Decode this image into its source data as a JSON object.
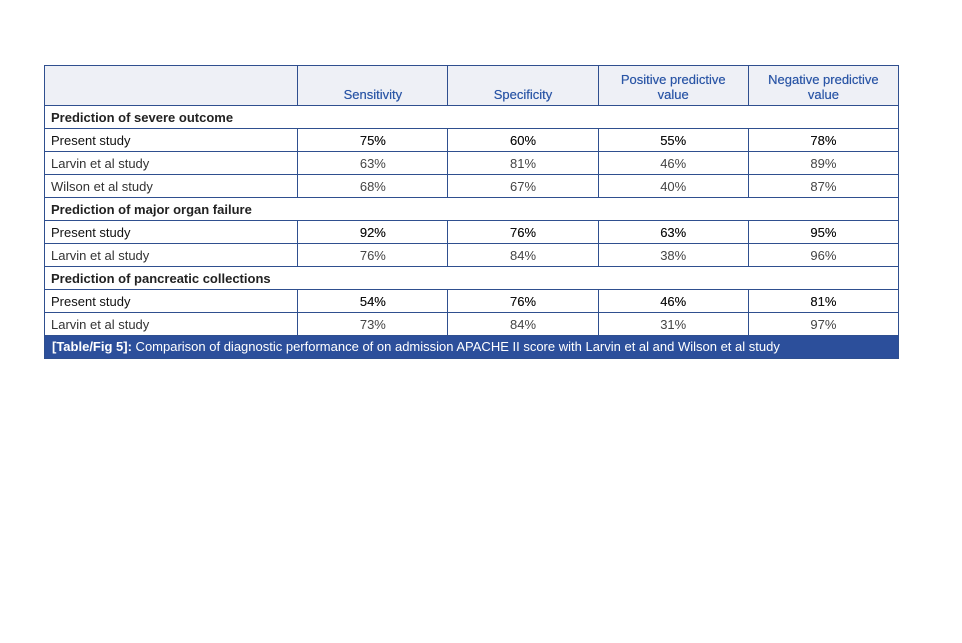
{
  "table": {
    "columns": [
      "",
      "Sensitivity",
      "Specificity",
      "Positive predictive value",
      "Negative predictive value"
    ],
    "sections": [
      {
        "title": "Prediction of severe outcome",
        "rows": [
          {
            "label": "Present study",
            "values": [
              "75%",
              "60%",
              "55%",
              "78%"
            ]
          },
          {
            "label": "Larvin et al study",
            "values": [
              "63%",
              "81%",
              "46%",
              "89%"
            ]
          },
          {
            "label": "Wilson et al study",
            "values": [
              "68%",
              "67%",
              "40%",
              "87%"
            ]
          }
        ]
      },
      {
        "title": "Prediction of major organ failure",
        "rows": [
          {
            "label": "Present study",
            "values": [
              "92%",
              "76%",
              "63%",
              "95%"
            ]
          },
          {
            "label": "Larvin et al study",
            "values": [
              "76%",
              "84%",
              "38%",
              "96%"
            ]
          }
        ]
      },
      {
        "title": "Prediction of pancreatic collections",
        "rows": [
          {
            "label": "Present study",
            "values": [
              "54%",
              "76%",
              "46%",
              "81%"
            ]
          },
          {
            "label": "Larvin et al study",
            "values": [
              "73%",
              "84%",
              "31%",
              "97%"
            ]
          }
        ]
      }
    ]
  },
  "caption": {
    "label": "[Table/Fig 5]:",
    "text": " Comparison of diagnostic performance of on admission APACHE II score with Larvin et al and Wilson et al study"
  },
  "colors": {
    "border": "#2f4f8f",
    "header_bg": "#eef0f6",
    "header_text": "#2b56a6",
    "caption_bg": "#2c4f9b"
  }
}
